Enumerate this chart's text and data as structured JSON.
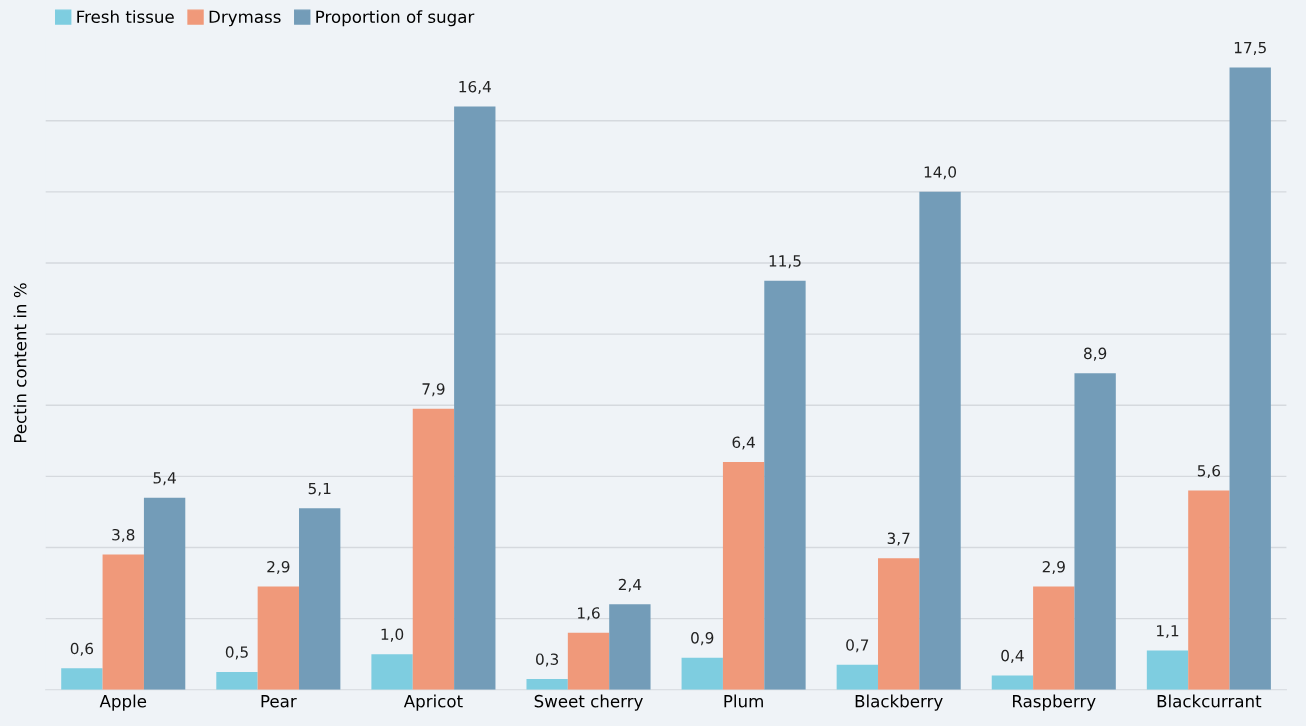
{
  "chart_data": {
    "type": "bar",
    "ylabel": "Pectin content in %",
    "categories": [
      "Apple",
      "Pear",
      "Apricot",
      "Sweet cherry",
      "Plum",
      "Blackberry",
      "Raspberry",
      "Blackcurrant"
    ],
    "series": [
      {
        "name": "Fresh tissue",
        "color": "#7ecde0",
        "values": [
          0.6,
          0.5,
          1.0,
          0.3,
          0.9,
          0.7,
          0.4,
          1.1
        ],
        "value_labels": [
          "0,6",
          "0,5",
          "1,0",
          "0,3",
          "0,9",
          "0,7",
          "0,4",
          "1,1"
        ]
      },
      {
        "name": "Drymass",
        "color": "#f0997a",
        "values": [
          3.8,
          2.9,
          7.9,
          1.6,
          6.4,
          3.7,
          2.9,
          5.6
        ],
        "value_labels": [
          "3,8",
          "2,9",
          "7,9",
          "1,6",
          "6,4",
          "3,7",
          "2,9",
          "5,6"
        ]
      },
      {
        "name": "Proportion of sugar",
        "color": "#739cb8",
        "values": [
          5.4,
          5.1,
          16.4,
          2.4,
          11.5,
          14.0,
          8.9,
          17.5
        ],
        "value_labels": [
          "5,4",
          "5,1",
          "16,4",
          "2,4",
          "11,5",
          "14,0",
          "8,9",
          "17,5"
        ]
      }
    ],
    "yticks": [
      {
        "value": 2,
        "label": null
      },
      {
        "value": 4,
        "label": null
      },
      {
        "value": 6,
        "label": null
      },
      {
        "value": 8,
        "label": null
      },
      {
        "value": 10,
        "label": null
      },
      {
        "value": 12,
        "label": null
      },
      {
        "value": 14,
        "label": null
      },
      {
        "value": 16,
        "label": null
      }
    ],
    "grid": "y",
    "legend": "top left"
  }
}
